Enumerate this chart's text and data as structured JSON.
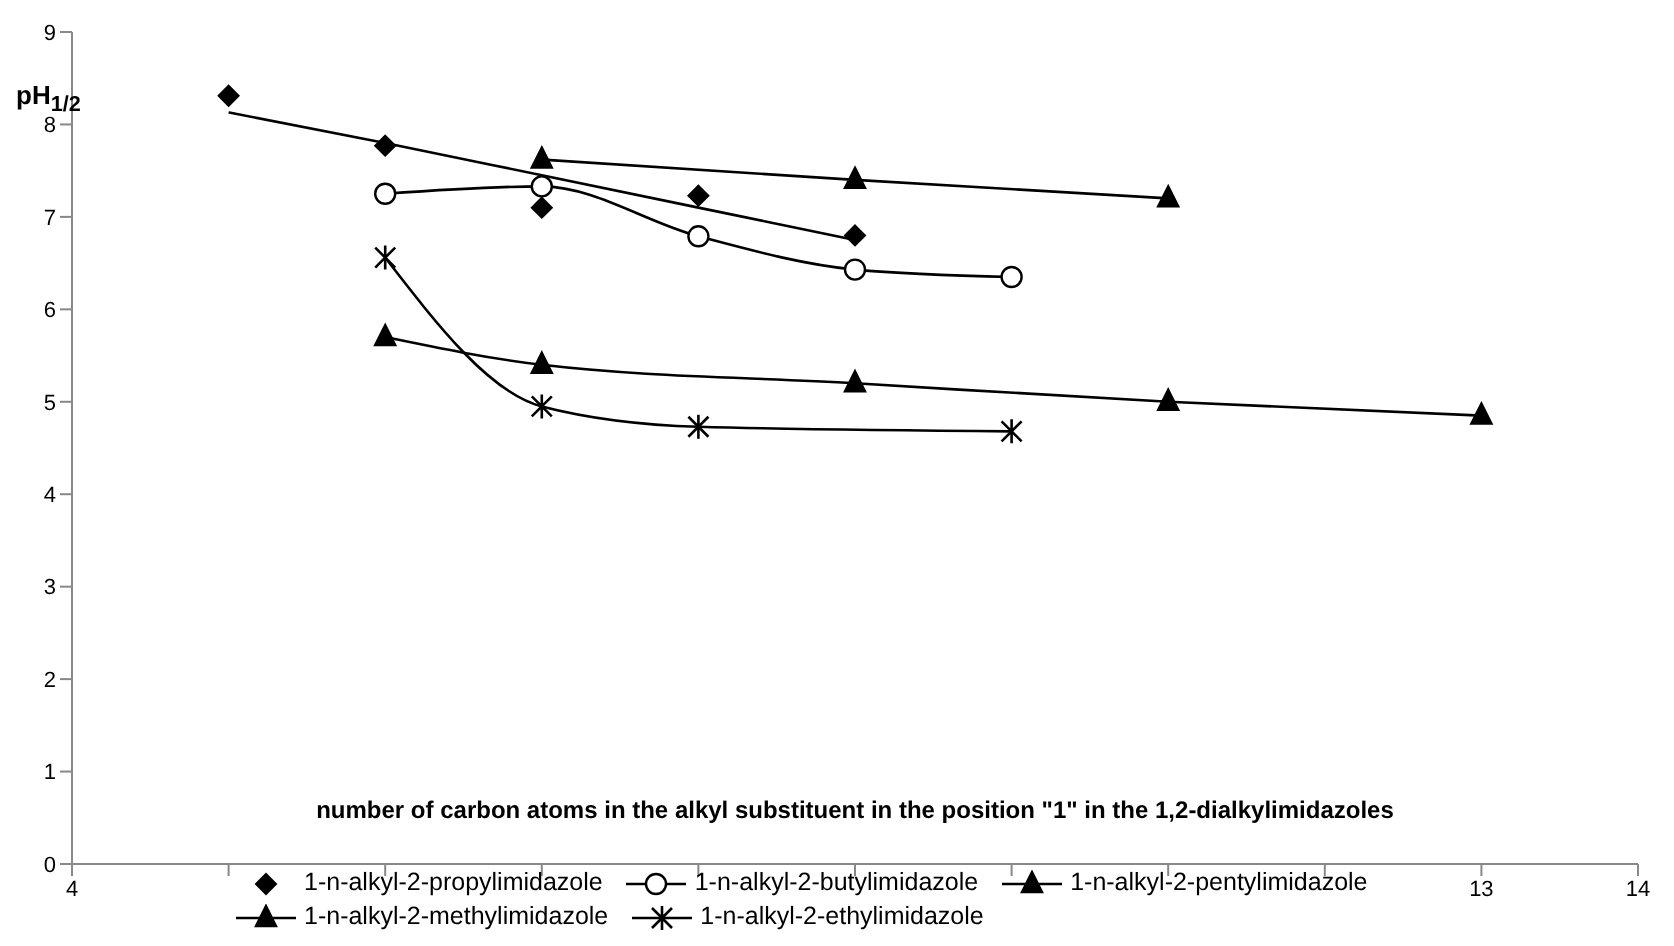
{
  "chart_data": {
    "type": "line",
    "xlabel": "number of carbon atoms in the alkyl substituent in the position \"1\" in the 1,2-dialkylimidazoles",
    "ylabel": "pH$_{1/2}$",
    "xlim": [
      4,
      14
    ],
    "xticks": [
      4,
      {
        "value": 5,
        "label": null
      },
      {
        "value": 6,
        "label": null
      },
      {
        "value": 7,
        "label": null
      },
      {
        "value": 8,
        "label": null
      },
      {
        "value": 9,
        "label": null
      },
      {
        "value": 10,
        "label": null
      },
      {
        "value": 11,
        "label": null
      },
      {
        "value": 12,
        "label": null
      },
      13,
      14
    ],
    "ylim": [
      0,
      9
    ],
    "yticks": [
      0,
      1,
      2,
      3,
      4,
      5,
      6,
      7,
      8,
      9
    ],
    "legend": "bottom",
    "series": [
      {
        "name": "1-n-alkyl-2-propylimidazole",
        "type": "scatter",
        "marker": "diamond",
        "color": "#000000",
        "x": [
          5,
          6,
          7,
          8,
          9
        ],
        "values": [
          8.31,
          7.77,
          7.1,
          7.23,
          6.8
        ]
      },
      {
        "name": "1-n-alkyl-2-butylimidazole",
        "marker": "circle",
        "color": "#000000",
        "x": [
          6,
          7,
          8,
          9,
          10
        ],
        "values": [
          7.25,
          7.33,
          6.79,
          6.43,
          6.35
        ]
      },
      {
        "name": "1-n-alkyl-2-pentylimidazole",
        "marker": "triangle",
        "color": "#000000",
        "x": [
          7,
          9,
          11
        ],
        "values": [
          7.62,
          7.4,
          7.2
        ]
      },
      {
        "name": "1-n-alkyl-2-methylimidazole",
        "marker": "triangle",
        "color": "#000000",
        "x": [
          6,
          7,
          9,
          11,
          13
        ],
        "values": [
          5.7,
          5.4,
          5.2,
          5.0,
          4.85
        ]
      },
      {
        "name": "1-n-alkyl-2-ethylimidazole",
        "marker": "cross",
        "color": "#000000",
        "x": [
          6,
          7,
          8,
          10
        ],
        "values": [
          6.56,
          4.95,
          4.73,
          4.68
        ]
      },
      {
        "marker": "none",
        "color": "#000000",
        "x": [
          5,
          6,
          7,
          8,
          9
        ],
        "values": [
          8.13,
          7.8,
          7.45,
          7.1,
          6.75
        ]
      }
    ]
  }
}
